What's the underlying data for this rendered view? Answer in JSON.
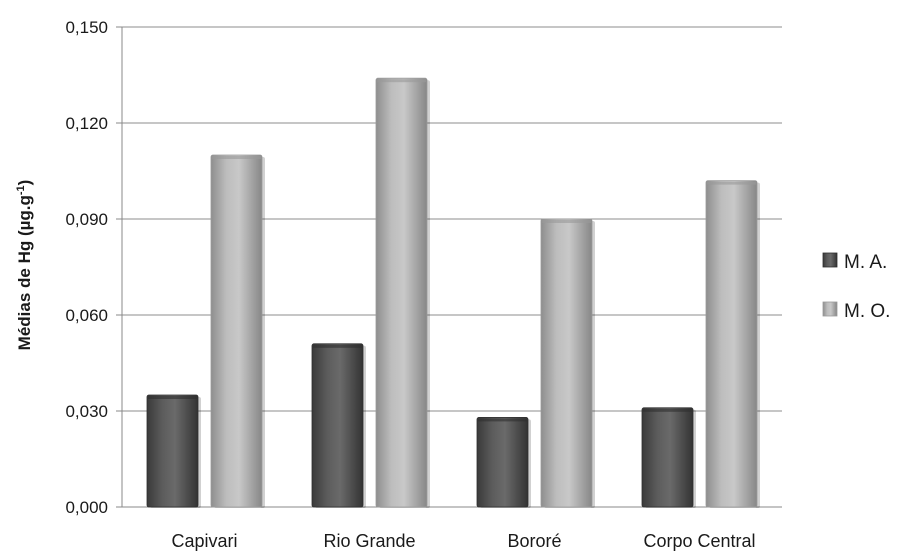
{
  "chart_data": {
    "type": "bar",
    "categories": [
      "Capivari",
      "Rio Grande",
      "Bororé",
      "Corpo Central"
    ],
    "series": [
      {
        "name": "M. A.",
        "values": [
          0.035,
          0.051,
          0.028,
          0.031
        ],
        "color": "#555555"
      },
      {
        "name": "M. O.",
        "values": [
          0.11,
          0.134,
          0.09,
          0.102
        ],
        "color": "#b3b3b3"
      }
    ],
    "ylabel_main": "Médias de Hg (µg.g",
    "ylabel_sup": "-1",
    "ylabel_end": ")",
    "xlabel": "",
    "ylim": [
      0,
      0.15
    ],
    "yticks": [
      0,
      0.03,
      0.06,
      0.09,
      0.12,
      0.15
    ],
    "ytick_labels": [
      "0,000",
      "0,030",
      "0,060",
      "0,090",
      "0,120",
      "0,150"
    ],
    "grid": true,
    "legend_position": "right"
  }
}
